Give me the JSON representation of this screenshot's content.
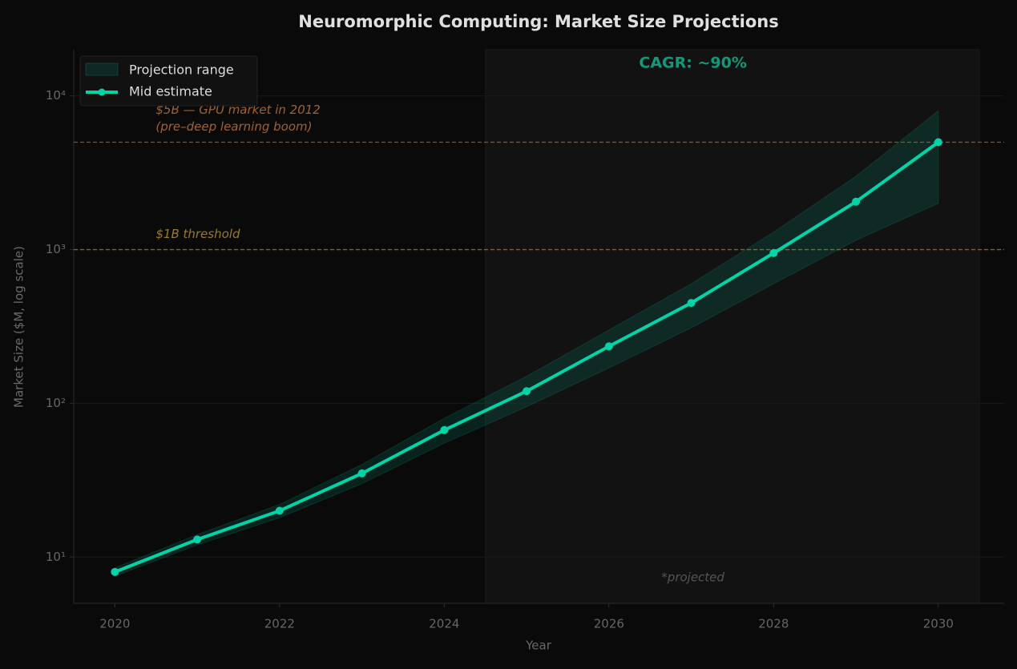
{
  "chart_data": {
    "type": "line",
    "title": "Neuromorphic Computing: Market Size Projections",
    "x_label": "Year",
    "y_label": "Market Size ($M, log scale)",
    "log_y": true,
    "grid": true,
    "legend": "upper left",
    "x": [
      2020,
      2021,
      2022,
      2023,
      2024,
      2025,
      2026,
      2027,
      2028,
      2029,
      2030
    ],
    "xlim": [
      2019.5,
      2030.8
    ],
    "xticks": [
      2020,
      2022,
      2024,
      2026,
      2028,
      2030
    ],
    "ylim": [
      5,
      20000
    ],
    "yticks": [
      {
        "value": 10,
        "label": "10¹"
      },
      {
        "value": 100,
        "label": "10²"
      },
      {
        "value": 1000,
        "label": "10³"
      },
      {
        "value": 10000,
        "label": "10⁴"
      }
    ],
    "band": {
      "name": "Projection range",
      "color": "#00d4a8",
      "low": [
        7.5,
        12,
        18,
        30,
        55,
        95,
        170,
        310,
        600,
        1150,
        2000
      ],
      "high": [
        8.5,
        14,
        22,
        40,
        80,
        150,
        300,
        600,
        1300,
        3000,
        8000
      ]
    },
    "series": [
      {
        "name": "Mid estimate",
        "color": "#00d4a8",
        "values": [
          8,
          13,
          20,
          35,
          67,
          120,
          235,
          450,
          950,
          2050,
          5000
        ]
      }
    ],
    "reference_lines": [
      {
        "value": 5000,
        "color": "#a0622e",
        "label": [
          "$5B — GPU market in 2012",
          "(pre–deep learning boom)"
        ]
      },
      {
        "value": 1000,
        "color": "#9a7a2a",
        "label": [
          "$1B threshold"
        ]
      }
    ],
    "shaded_region": {
      "xlim": [
        2024.5,
        2030.5
      ],
      "label": "*projected",
      "annotation": "CAGR: ~90%"
    }
  }
}
